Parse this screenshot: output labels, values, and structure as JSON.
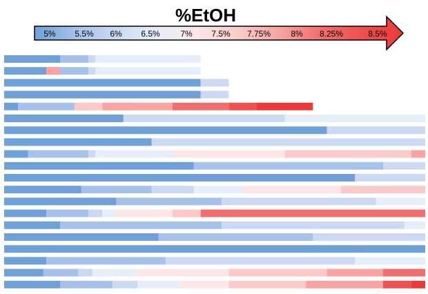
{
  "chart_data": {
    "type": "heatmap",
    "title": "%EtOH",
    "legend": {
      "labels": [
        "5%",
        "5.5%",
        "6%",
        "6.5%",
        "7%",
        "7.5%",
        "7.75%",
        "8%",
        "8.25%",
        "8.5%"
      ],
      "colors": [
        "#6fa1d8",
        "#a7c2ea",
        "#cbdaf2",
        "#e6eef9",
        "#fde6e6",
        "#fbc9c9",
        "#f9a3a3",
        "#f26e6e",
        "#ef5050",
        "#ec3a3a"
      ]
    },
    "rows": [
      [
        [
          0,
          4
        ],
        [
          5.5,
          6
        ],
        [
          6,
          6.5
        ],
        [
          6.5,
          14
        ],
        [
          7,
          5
        ]
      ],
      [
        [
          0,
          4
        ],
        [
          5.5,
          6
        ],
        [
          6,
          6.5
        ],
        [
          6.5,
          14
        ],
        [
          7,
          5
        ],
        [
          7.5,
          3
        ],
        [
          7.75,
          4
        ]
      ],
      [
        [
          0,
          14
        ],
        [
          6,
          16
        ]
      ],
      [
        [
          0,
          14
        ],
        [
          6,
          16
        ]
      ],
      [
        [
          0,
          1
        ],
        [
          5.5,
          6
        ],
        [
          6,
          6.5
        ],
        [
          6.5,
          9
        ],
        [
          7,
          5
        ],
        [
          7.5,
          7
        ],
        [
          7.75,
          12
        ],
        [
          8,
          16
        ],
        [
          8.25,
          18
        ],
        [
          8.5,
          22
        ]
      ],
      [
        [
          0,
          8.5
        ],
        [
          6,
          20
        ],
        [
          6.5,
          30
        ]
      ],
      [
        [
          0,
          23
        ],
        [
          6,
          30
        ]
      ],
      [
        [
          0,
          10.5
        ],
        [
          6,
          30
        ]
      ],
      [
        [
          0,
          1.7
        ],
        [
          5.5,
          6
        ],
        [
          6,
          6.5
        ],
        [
          6.5,
          12
        ],
        [
          7,
          20
        ],
        [
          7.5,
          29
        ],
        [
          7.75,
          30
        ]
      ],
      [
        [
          0,
          13.5
        ],
        [
          5.5,
          27
        ],
        [
          6,
          30
        ]
      ],
      [
        [
          0,
          25
        ],
        [
          6,
          30
        ]
      ],
      [
        [
          0,
          5.5
        ],
        [
          5.5,
          10.5
        ],
        [
          6,
          13.5
        ],
        [
          6.5,
          17
        ],
        [
          7,
          24
        ],
        [
          7.5,
          30
        ]
      ],
      [
        [
          0,
          8
        ],
        [
          5.5,
          15.5
        ],
        [
          6,
          26.5
        ],
        [
          6.5,
          30
        ]
      ],
      [
        [
          0,
          3
        ],
        [
          5.5,
          6
        ],
        [
          6,
          7
        ],
        [
          6.5,
          8
        ],
        [
          7,
          12
        ],
        [
          7.5,
          14
        ],
        [
          8,
          30
        ]
      ],
      [
        [
          0,
          4
        ],
        [
          5.5,
          15.5
        ],
        [
          6,
          28.5
        ],
        [
          6.5,
          30
        ]
      ],
      [
        [
          0,
          11
        ],
        [
          5.5,
          22
        ],
        [
          6,
          30
        ]
      ],
      [
        [
          0,
          30
        ]
      ],
      [
        [
          0,
          3
        ],
        [
          5.5,
          11.5
        ],
        [
          6,
          25
        ],
        [
          6.5,
          30
        ]
      ],
      [
        [
          0,
          2.8
        ],
        [
          5.5,
          5.3
        ],
        [
          6,
          6.3
        ],
        [
          6.5,
          9.5
        ],
        [
          7,
          16
        ],
        [
          7.5,
          23
        ],
        [
          7.75,
          27
        ],
        [
          8,
          30
        ]
      ],
      [
        [
          0,
          4
        ],
        [
          5.5,
          7.7
        ],
        [
          6,
          9.5
        ],
        [
          6.5,
          12.5
        ],
        [
          7,
          16
        ],
        [
          7.5,
          21.5
        ],
        [
          7.75,
          27
        ],
        [
          8.25,
          29
        ],
        [
          8.5,
          30
        ]
      ]
    ]
  }
}
